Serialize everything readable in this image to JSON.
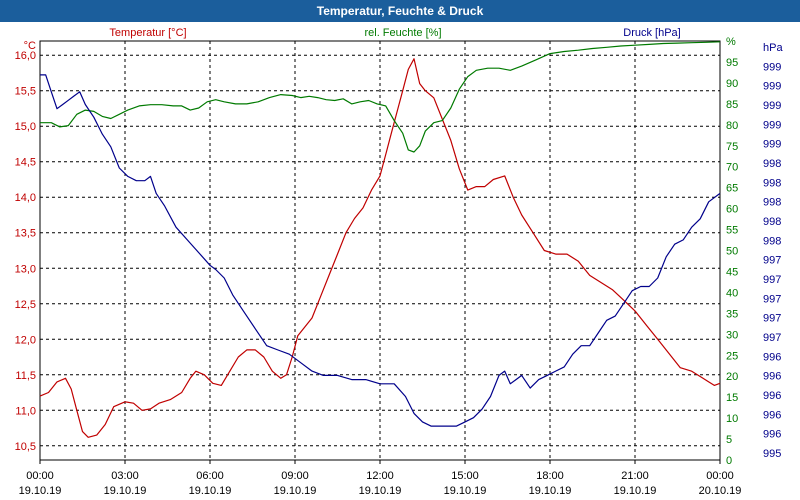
{
  "window": {
    "title": "Temperatur, Feuchte & Druck"
  },
  "colors": {
    "temperature": "#c00000",
    "humidity": "#007a00",
    "pressure": "#00008b",
    "titlebar": "#1b5e9c"
  },
  "chart_data": {
    "type": "line",
    "title": "Temperatur, Feuchte & Druck",
    "x_ticks": [
      {
        "time": "00:00",
        "date": "19.10.19"
      },
      {
        "time": "03:00",
        "date": "19.10.19"
      },
      {
        "time": "06:00",
        "date": "19.10.19"
      },
      {
        "time": "09:00",
        "date": "19.10.19"
      },
      {
        "time": "12:00",
        "date": "19.10.19"
      },
      {
        "time": "15:00",
        "date": "19.10.19"
      },
      {
        "time": "18:00",
        "date": "19.10.19"
      },
      {
        "time": "21:00",
        "date": "19.10.19"
      },
      {
        "time": "00:00",
        "date": "20.10.19"
      }
    ],
    "xlim": [
      0,
      24
    ],
    "left_axis": {
      "label": "Temperatur [°C]",
      "unit": "°C",
      "ylim": [
        10.3,
        16.2
      ],
      "tick_values": [
        10.5,
        11.0,
        11.5,
        12.0,
        12.5,
        13.0,
        13.5,
        14.0,
        14.5,
        15.0,
        15.5,
        16.0
      ],
      "tick_labels": [
        "10,5",
        "11,0",
        "11,5",
        "12,0",
        "12,5",
        "13,0",
        "13,5",
        "14,0",
        "14,5",
        "15,0",
        "15,5",
        "16,0"
      ]
    },
    "humidity_axis": {
      "label": "rel. Feuchte [%]",
      "unit": "%",
      "ylim": [
        0,
        100
      ],
      "tick_labels": [
        "0",
        "5",
        "10",
        "15",
        "20",
        "25",
        "30",
        "35",
        "40",
        "45",
        "50",
        "55",
        "60",
        "65",
        "70",
        "75",
        "80",
        "85",
        "90",
        "95",
        "%"
      ]
    },
    "pressure_axis": {
      "label": "Druck [hPa]",
      "unit": "hPa",
      "ylim": [
        995.0,
        999.95
      ],
      "tick_labels": [
        "995",
        "996",
        "996",
        "996",
        "996",
        "996",
        "997",
        "997",
        "997",
        "997",
        "997",
        "998",
        "998",
        "998",
        "998",
        "998",
        "999",
        "999",
        "999",
        "999",
        "999",
        "hPa"
      ]
    },
    "series": [
      {
        "name": "Temperatur",
        "axis": "temperature",
        "points": [
          [
            0,
            11.2
          ],
          [
            0.3,
            11.25
          ],
          [
            0.6,
            11.4
          ],
          [
            0.9,
            11.45
          ],
          [
            1.1,
            11.3
          ],
          [
            1.3,
            11.0
          ],
          [
            1.5,
            10.7
          ],
          [
            1.7,
            10.62
          ],
          [
            2.0,
            10.65
          ],
          [
            2.3,
            10.8
          ],
          [
            2.6,
            11.05
          ],
          [
            3.0,
            11.12
          ],
          [
            3.3,
            11.1
          ],
          [
            3.6,
            11.0
          ],
          [
            3.9,
            11.02
          ],
          [
            4.2,
            11.1
          ],
          [
            4.6,
            11.15
          ],
          [
            5.0,
            11.25
          ],
          [
            5.3,
            11.45
          ],
          [
            5.5,
            11.55
          ],
          [
            5.8,
            11.5
          ],
          [
            6.1,
            11.38
          ],
          [
            6.4,
            11.35
          ],
          [
            6.7,
            11.55
          ],
          [
            7.0,
            11.75
          ],
          [
            7.3,
            11.85
          ],
          [
            7.6,
            11.85
          ],
          [
            7.9,
            11.75
          ],
          [
            8.2,
            11.55
          ],
          [
            8.5,
            11.45
          ],
          [
            8.7,
            11.5
          ],
          [
            8.9,
            11.75
          ],
          [
            9.1,
            12.05
          ],
          [
            9.3,
            12.15
          ],
          [
            9.6,
            12.3
          ],
          [
            9.9,
            12.6
          ],
          [
            10.2,
            12.9
          ],
          [
            10.5,
            13.2
          ],
          [
            10.8,
            13.5
          ],
          [
            11.1,
            13.7
          ],
          [
            11.4,
            13.85
          ],
          [
            11.7,
            14.1
          ],
          [
            12.0,
            14.3
          ],
          [
            12.2,
            14.6
          ],
          [
            12.4,
            14.9
          ],
          [
            12.6,
            15.2
          ],
          [
            12.8,
            15.5
          ],
          [
            13.0,
            15.8
          ],
          [
            13.2,
            15.95
          ],
          [
            13.4,
            15.6
          ],
          [
            13.6,
            15.5
          ],
          [
            13.9,
            15.4
          ],
          [
            14.2,
            15.1
          ],
          [
            14.5,
            14.8
          ],
          [
            14.8,
            14.4
          ],
          [
            15.1,
            14.1
          ],
          [
            15.4,
            14.15
          ],
          [
            15.7,
            14.15
          ],
          [
            16.0,
            14.25
          ],
          [
            16.4,
            14.3
          ],
          [
            16.7,
            14.0
          ],
          [
            17.0,
            13.75
          ],
          [
            17.4,
            13.5
          ],
          [
            17.8,
            13.25
          ],
          [
            18.2,
            13.2
          ],
          [
            18.6,
            13.2
          ],
          [
            19.0,
            13.1
          ],
          [
            19.4,
            12.9
          ],
          [
            19.8,
            12.8
          ],
          [
            20.2,
            12.7
          ],
          [
            20.6,
            12.55
          ],
          [
            21.0,
            12.4
          ],
          [
            21.4,
            12.2
          ],
          [
            21.8,
            12.0
          ],
          [
            22.2,
            11.8
          ],
          [
            22.6,
            11.6
          ],
          [
            23.0,
            11.55
          ],
          [
            23.4,
            11.45
          ],
          [
            23.8,
            11.35
          ],
          [
            24.0,
            11.38
          ]
        ]
      },
      {
        "name": "rel. Feuchte",
        "axis": "humidity",
        "points": [
          [
            0,
            80.5
          ],
          [
            0.4,
            80.5
          ],
          [
            0.7,
            79.5
          ],
          [
            1.0,
            79.8
          ],
          [
            1.3,
            82.5
          ],
          [
            1.6,
            83.5
          ],
          [
            1.9,
            83.2
          ],
          [
            2.2,
            82.0
          ],
          [
            2.5,
            81.5
          ],
          [
            2.8,
            82.5
          ],
          [
            3.1,
            83.5
          ],
          [
            3.5,
            84.5
          ],
          [
            3.9,
            84.8
          ],
          [
            4.3,
            84.8
          ],
          [
            4.7,
            84.5
          ],
          [
            5.0,
            84.5
          ],
          [
            5.3,
            83.5
          ],
          [
            5.6,
            84.0
          ],
          [
            5.9,
            85.5
          ],
          [
            6.2,
            86.0
          ],
          [
            6.5,
            85.5
          ],
          [
            6.9,
            85.0
          ],
          [
            7.3,
            85.0
          ],
          [
            7.7,
            85.5
          ],
          [
            8.1,
            86.5
          ],
          [
            8.5,
            87.2
          ],
          [
            8.9,
            87.0
          ],
          [
            9.2,
            86.5
          ],
          [
            9.5,
            86.8
          ],
          [
            9.8,
            86.5
          ],
          [
            10.1,
            86.0
          ],
          [
            10.4,
            85.8
          ],
          [
            10.7,
            86.2
          ],
          [
            11.0,
            85.0
          ],
          [
            11.3,
            85.5
          ],
          [
            11.6,
            85.8
          ],
          [
            11.9,
            85.0
          ],
          [
            12.2,
            84.5
          ],
          [
            12.5,
            81.0
          ],
          [
            12.8,
            78.0
          ],
          [
            13.0,
            74.0
          ],
          [
            13.2,
            73.5
          ],
          [
            13.4,
            75.0
          ],
          [
            13.6,
            78.5
          ],
          [
            13.9,
            80.5
          ],
          [
            14.2,
            81.0
          ],
          [
            14.5,
            84.0
          ],
          [
            14.8,
            88.5
          ],
          [
            15.1,
            91.5
          ],
          [
            15.4,
            93.0
          ],
          [
            15.8,
            93.5
          ],
          [
            16.2,
            93.5
          ],
          [
            16.6,
            93.0
          ],
          [
            17.0,
            94.0
          ],
          [
            17.5,
            95.5
          ],
          [
            18.0,
            97.0
          ],
          [
            18.5,
            97.5
          ],
          [
            19.0,
            97.8
          ],
          [
            19.5,
            98.2
          ],
          [
            20.0,
            98.5
          ],
          [
            20.5,
            98.8
          ],
          [
            21.0,
            99.0
          ],
          [
            21.5,
            99.2
          ],
          [
            22.0,
            99.4
          ],
          [
            22.5,
            99.5
          ],
          [
            23.0,
            99.6
          ],
          [
            23.5,
            99.7
          ],
          [
            24.0,
            99.8
          ]
        ]
      },
      {
        "name": "Druck",
        "axis": "pressure",
        "points": [
          [
            0,
            999.55
          ],
          [
            0.2,
            999.55
          ],
          [
            0.4,
            999.35
          ],
          [
            0.6,
            999.15
          ],
          [
            0.8,
            999.2
          ],
          [
            1.0,
            999.25
          ],
          [
            1.2,
            999.3
          ],
          [
            1.4,
            999.35
          ],
          [
            1.6,
            999.2
          ],
          [
            1.9,
            999.05
          ],
          [
            2.2,
            998.85
          ],
          [
            2.5,
            998.7
          ],
          [
            2.8,
            998.45
          ],
          [
            3.1,
            998.35
          ],
          [
            3.4,
            998.3
          ],
          [
            3.7,
            998.3
          ],
          [
            3.9,
            998.35
          ],
          [
            4.1,
            998.15
          ],
          [
            4.4,
            998.0
          ],
          [
            4.8,
            997.75
          ],
          [
            5.2,
            997.6
          ],
          [
            5.6,
            997.45
          ],
          [
            6.0,
            997.3
          ],
          [
            6.2,
            997.25
          ],
          [
            6.5,
            997.15
          ],
          [
            6.8,
            996.95
          ],
          [
            7.2,
            996.75
          ],
          [
            7.6,
            996.55
          ],
          [
            8.0,
            996.35
          ],
          [
            8.4,
            996.3
          ],
          [
            8.8,
            996.25
          ],
          [
            9.2,
            996.15
          ],
          [
            9.6,
            996.05
          ],
          [
            10.0,
            996.0
          ],
          [
            10.5,
            996.0
          ],
          [
            11.0,
            995.95
          ],
          [
            11.5,
            995.95
          ],
          [
            12.0,
            995.9
          ],
          [
            12.5,
            995.9
          ],
          [
            12.9,
            995.75
          ],
          [
            13.2,
            995.55
          ],
          [
            13.5,
            995.45
          ],
          [
            13.8,
            995.4
          ],
          [
            14.1,
            995.4
          ],
          [
            14.4,
            995.4
          ],
          [
            14.7,
            995.4
          ],
          [
            15.0,
            995.45
          ],
          [
            15.3,
            995.5
          ],
          [
            15.6,
            995.6
          ],
          [
            15.9,
            995.75
          ],
          [
            16.2,
            996.0
          ],
          [
            16.4,
            996.05
          ],
          [
            16.6,
            995.9
          ],
          [
            16.8,
            995.95
          ],
          [
            17.0,
            996.0
          ],
          [
            17.3,
            995.85
          ],
          [
            17.6,
            995.95
          ],
          [
            17.9,
            996.0
          ],
          [
            18.2,
            996.05
          ],
          [
            18.5,
            996.1
          ],
          [
            18.8,
            996.25
          ],
          [
            19.1,
            996.35
          ],
          [
            19.4,
            996.35
          ],
          [
            19.7,
            996.5
          ],
          [
            20.0,
            996.65
          ],
          [
            20.3,
            996.7
          ],
          [
            20.6,
            996.85
          ],
          [
            20.9,
            997.0
          ],
          [
            21.2,
            997.05
          ],
          [
            21.5,
            997.05
          ],
          [
            21.8,
            997.15
          ],
          [
            22.1,
            997.4
          ],
          [
            22.4,
            997.55
          ],
          [
            22.7,
            997.6
          ],
          [
            23.0,
            997.75
          ],
          [
            23.3,
            997.85
          ],
          [
            23.6,
            998.05
          ],
          [
            24.0,
            998.15
          ]
        ]
      }
    ]
  }
}
